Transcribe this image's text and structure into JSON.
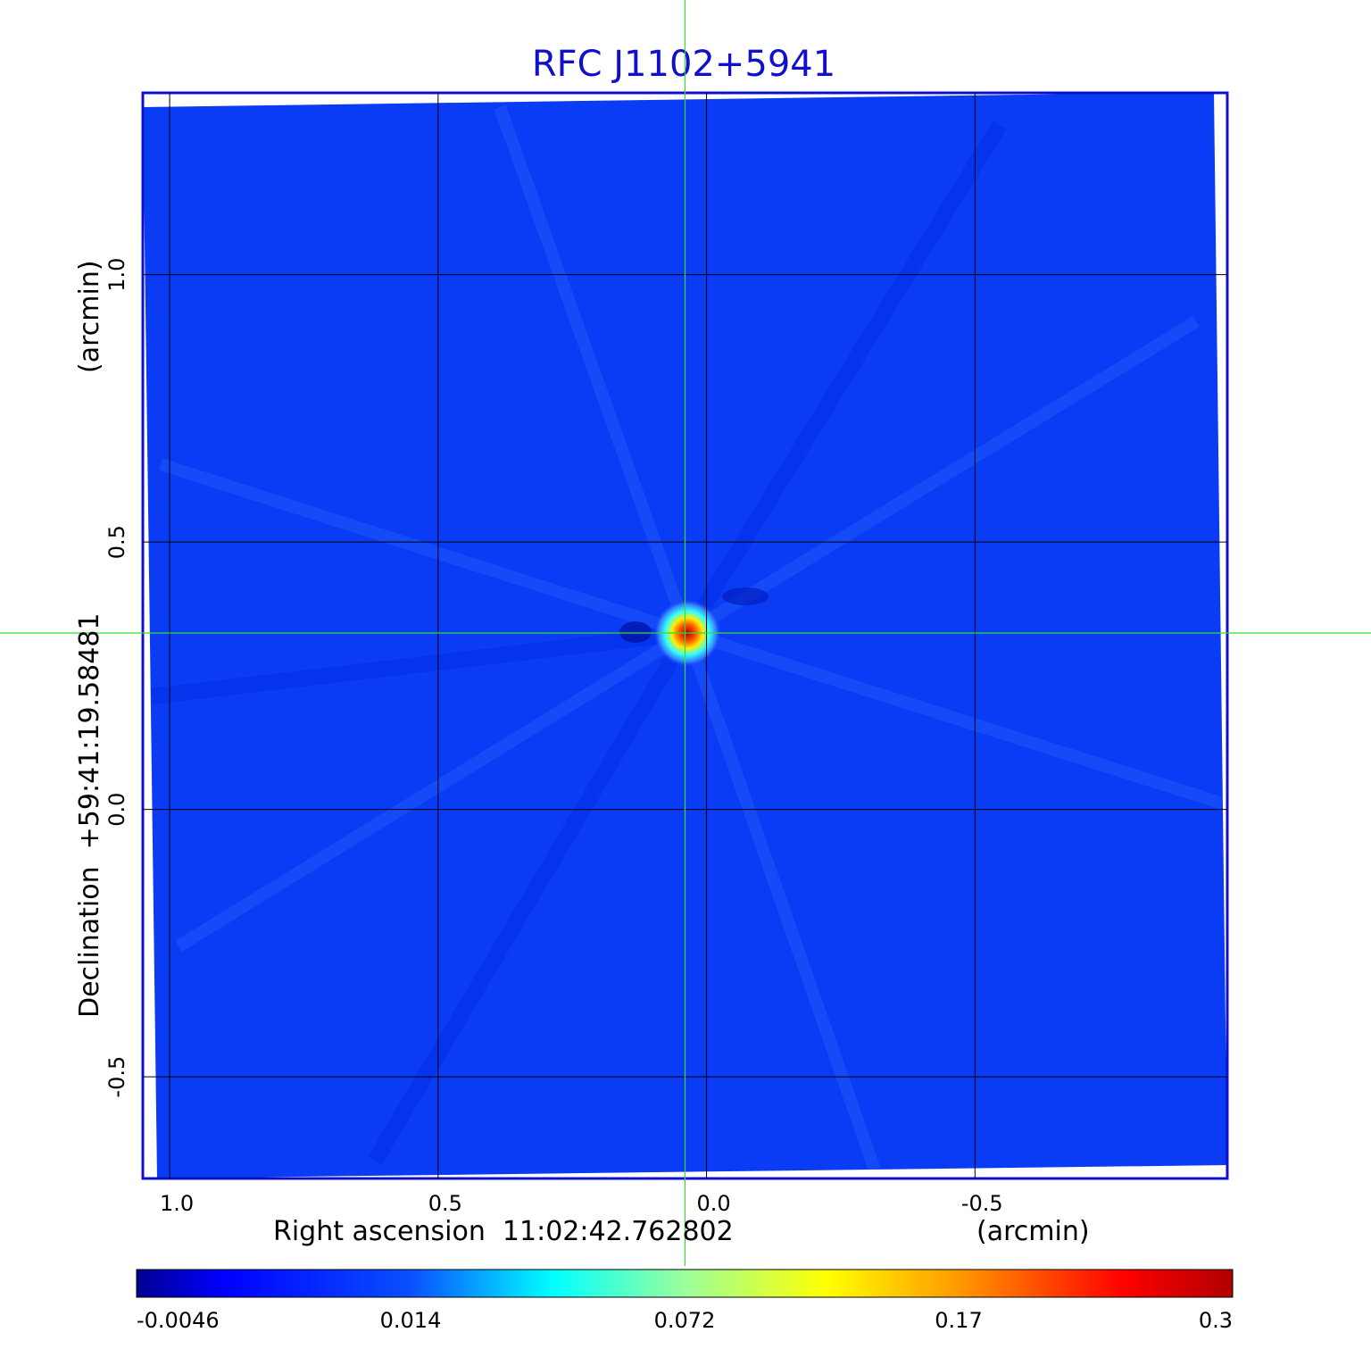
{
  "chart_data": {
    "type": "heatmap",
    "title": "RFC J1102+5941",
    "xlabel": "Right ascension  11:02:42.762802",
    "xunit": "(arcmin)",
    "ylabel": "Declination  +59:41:19.58481",
    "yunit": "(arcmin)",
    "x_ticks": [
      {
        "value": 1.0,
        "label": "1.0"
      },
      {
        "value": 0.5,
        "label": "0.5"
      },
      {
        "value": 0.0,
        "label": "0.0"
      },
      {
        "value": -0.5,
        "label": "-0.5"
      }
    ],
    "y_ticks": [
      {
        "value": 1.0,
        "label": "1.0"
      },
      {
        "value": 0.5,
        "label": "0.5"
      },
      {
        "value": 0.0,
        "label": "0.0"
      },
      {
        "value": -0.5,
        "label": "-0.5"
      }
    ],
    "xlim": [
      1.05,
      -0.97
    ],
    "ylim": [
      -0.69,
      1.34
    ],
    "grid": true,
    "crosshair": {
      "x": 0.04,
      "y": 0.33
    },
    "peak_position": {
      "x": 0.04,
      "y": 0.33
    },
    "colorbar": {
      "placement": "bottom",
      "min": -0.0046,
      "max": 0.3,
      "ticks": [
        {
          "value": -0.0046,
          "label": "-0.0046"
        },
        {
          "value": 0.014,
          "label": "0.014"
        },
        {
          "value": 0.072,
          "label": "0.072"
        },
        {
          "value": 0.17,
          "label": "0.17"
        },
        {
          "value": 0.3,
          "label": "0.3"
        }
      ]
    },
    "colors": {
      "background_emission": "#0a3cf5",
      "frame": "#1010cc",
      "crosshair": "#33dd33",
      "grid": "#000000"
    }
  }
}
